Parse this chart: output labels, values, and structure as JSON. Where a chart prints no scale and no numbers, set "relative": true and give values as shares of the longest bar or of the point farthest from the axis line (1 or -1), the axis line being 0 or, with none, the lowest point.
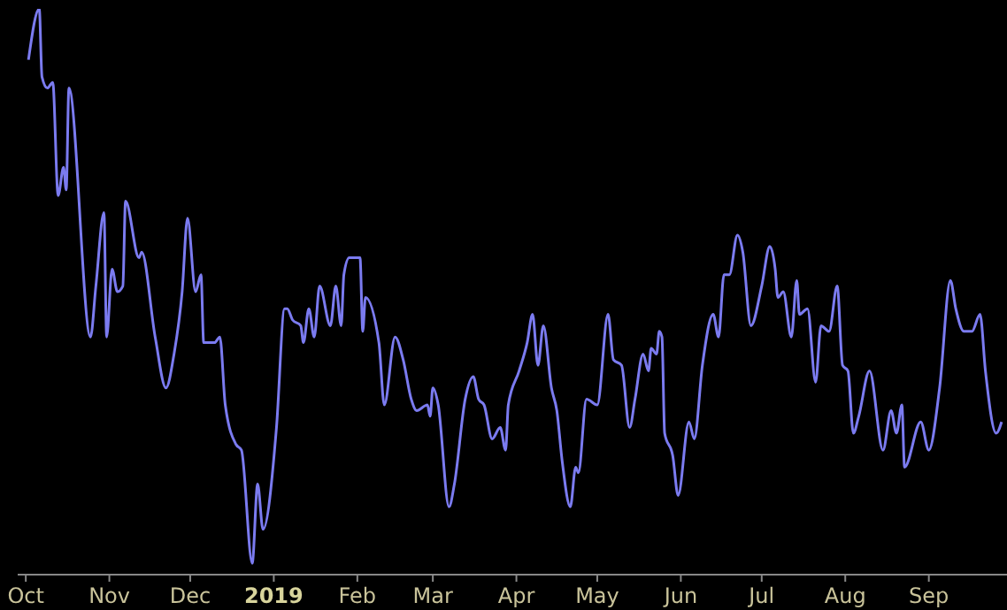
{
  "chart_data": {
    "type": "line",
    "relative": true,
    "legend": false,
    "grid": false,
    "marker": "none",
    "line_style": "solid",
    "xlim": [
      "2018-09-28",
      "2019-09-30"
    ],
    "xticks": [
      {
        "value": "2018-10-01",
        "label": "Oct"
      },
      {
        "value": "2018-11-01",
        "label": "Nov"
      },
      {
        "value": "2018-12-01",
        "label": "Dec"
      },
      {
        "value": "2019-01-01",
        "label": "2019"
      },
      {
        "value": "2019-02-01",
        "label": "Feb"
      },
      {
        "value": "2019-03-01",
        "label": "Mar"
      },
      {
        "value": "2019-04-01",
        "label": "Apr"
      },
      {
        "value": "2019-05-01",
        "label": "May"
      },
      {
        "value": "2019-06-01",
        "label": "Jun"
      },
      {
        "value": "2019-07-01",
        "label": "Jul"
      },
      {
        "value": "2019-08-01",
        "label": "Aug"
      },
      {
        "value": "2019-09-01",
        "label": "Sep"
      }
    ],
    "x": [
      "2018-10-02",
      "2018-10-06",
      "2018-10-07",
      "2018-10-09",
      "2018-10-11",
      "2018-10-13",
      "2018-10-15",
      "2018-10-16",
      "2018-10-17",
      "2018-10-25",
      "2018-10-27",
      "2018-10-30",
      "2018-10-31",
      "2018-11-02",
      "2018-11-04",
      "2018-11-06",
      "2018-11-07",
      "2018-11-12",
      "2018-11-13",
      "2018-11-18",
      "2018-11-22",
      "2018-11-25",
      "2018-11-28",
      "2018-11-30",
      "2018-12-03",
      "2018-12-05",
      "2018-12-06",
      "2018-12-10",
      "2018-12-12",
      "2018-12-14",
      "2018-12-18",
      "2018-12-20",
      "2018-12-24",
      "2018-12-26",
      "2018-12-28",
      "2019-01-02",
      "2019-01-05",
      "2019-01-06",
      "2019-01-08",
      "2019-01-11",
      "2019-01-12",
      "2019-01-14",
      "2019-01-16",
      "2019-01-18",
      "2019-01-22",
      "2019-01-24",
      "2019-01-26",
      "2019-01-27",
      "2019-01-29",
      "2019-02-02",
      "2019-02-03",
      "2019-02-04",
      "2019-02-09",
      "2019-02-11",
      "2019-02-15",
      "2019-02-18",
      "2019-02-21",
      "2019-02-23",
      "2019-02-27",
      "2019-02-28",
      "2019-03-01",
      "2019-03-03",
      "2019-03-07",
      "2019-03-09",
      "2019-03-13",
      "2019-03-16",
      "2019-03-18",
      "2019-03-20",
      "2019-03-23",
      "2019-03-26",
      "2019-03-28",
      "2019-03-29",
      "2019-04-02",
      "2019-04-05",
      "2019-04-07",
      "2019-04-09",
      "2019-04-11",
      "2019-04-14",
      "2019-04-16",
      "2019-04-18",
      "2019-04-21",
      "2019-04-23",
      "2019-04-24",
      "2019-04-27",
      "2019-05-01",
      "2019-05-05",
      "2019-05-07",
      "2019-05-10",
      "2019-05-13",
      "2019-05-15",
      "2019-05-18",
      "2019-05-20",
      "2019-05-21",
      "2019-05-23",
      "2019-05-24",
      "2019-05-25",
      "2019-05-26",
      "2019-05-29",
      "2019-05-31",
      "2019-06-04",
      "2019-06-06",
      "2019-06-09",
      "2019-06-13",
      "2019-06-15",
      "2019-06-17",
      "2019-06-19",
      "2019-06-22",
      "2019-06-24",
      "2019-06-27",
      "2019-07-01",
      "2019-07-04",
      "2019-07-06",
      "2019-07-07",
      "2019-07-09",
      "2019-07-12",
      "2019-07-14",
      "2019-07-15",
      "2019-07-18",
      "2019-07-21",
      "2019-07-23",
      "2019-07-26",
      "2019-07-29",
      "2019-07-31",
      "2019-08-02",
      "2019-08-04",
      "2019-08-06",
      "2019-08-10",
      "2019-08-15",
      "2019-08-18",
      "2019-08-20",
      "2019-08-22",
      "2019-08-23",
      "2019-08-29",
      "2019-09-01",
      "2019-09-05",
      "2019-09-09",
      "2019-09-11",
      "2019-09-14",
      "2019-09-17",
      "2019-09-20",
      "2019-09-22",
      "2019-09-26",
      "2019-09-28"
    ],
    "series": [
      {
        "color": "#7b7bf0",
        "values": [
          0.91,
          1,
          0.88,
          0.86,
          0.87,
          0.67,
          0.72,
          0.68,
          0.86,
          0.42,
          0.51,
          0.64,
          0.42,
          0.54,
          0.5,
          0.51,
          0.66,
          0.56,
          0.57,
          0.42,
          0.33,
          0.39,
          0.5,
          0.63,
          0.5,
          0.53,
          0.41,
          0.41,
          0.42,
          0.3,
          0.23,
          0.22,
          0.02,
          0.16,
          0.08,
          0.26,
          0.47,
          0.47,
          0.45,
          0.44,
          0.41,
          0.47,
          0.42,
          0.51,
          0.44,
          0.51,
          0.44,
          0.53,
          0.56,
          0.56,
          0.43,
          0.49,
          0.41,
          0.3,
          0.42,
          0.38,
          0.31,
          0.29,
          0.3,
          0.28,
          0.33,
          0.3,
          0.12,
          0.16,
          0.31,
          0.35,
          0.31,
          0.3,
          0.24,
          0.26,
          0.22,
          0.3,
          0.36,
          0.41,
          0.46,
          0.37,
          0.44,
          0.33,
          0.29,
          0.2,
          0.12,
          0.19,
          0.18,
          0.31,
          0.3,
          0.46,
          0.38,
          0.37,
          0.26,
          0.31,
          0.39,
          0.36,
          0.4,
          0.39,
          0.43,
          0.42,
          0.25,
          0.21,
          0.14,
          0.27,
          0.24,
          0.37,
          0.46,
          0.42,
          0.53,
          0.53,
          0.6,
          0.57,
          0.44,
          0.51,
          0.58,
          0.54,
          0.49,
          0.5,
          0.42,
          0.52,
          0.46,
          0.47,
          0.34,
          0.44,
          0.43,
          0.51,
          0.37,
          0.36,
          0.25,
          0.28,
          0.36,
          0.22,
          0.29,
          0.25,
          0.3,
          0.19,
          0.27,
          0.22,
          0.33,
          0.52,
          0.47,
          0.43,
          0.43,
          0.46,
          0.36,
          0.25,
          0.27
        ]
      }
    ]
  }
}
